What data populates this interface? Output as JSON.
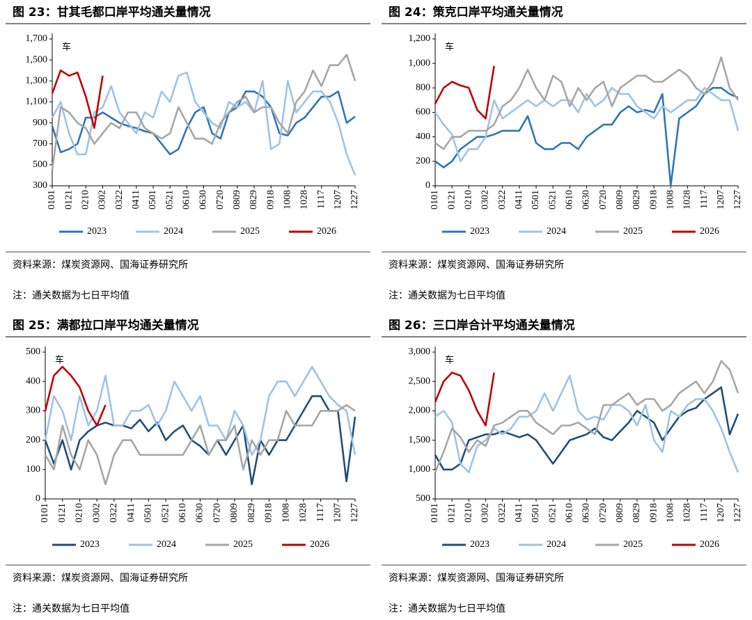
{
  "chart_data": [
    {
      "type": "line",
      "title": "图 23：甘其毛都口岸平均通关量情况",
      "annotation": "车",
      "source": "资料来源：煤炭资源网、国海证券研究所",
      "note": "注：通关数据为七日平均值",
      "categories": [
        "0101",
        null,
        "0121",
        null,
        "0210",
        null,
        "0302",
        null,
        "0322",
        null,
        "0411",
        null,
        "0501",
        null,
        "0521",
        null,
        "0610",
        null,
        "0630",
        null,
        "0720",
        null,
        "0809",
        null,
        "0829",
        null,
        "0918",
        null,
        "1008",
        null,
        "1028",
        null,
        "1117",
        null,
        "1207",
        null,
        "1227"
      ],
      "ylim": [
        300,
        1700
      ],
      "yticks": [
        300,
        500,
        700,
        900,
        {
          "value": 1100,
          "label": "1,100"
        },
        {
          "value": 1300,
          "label": "1,300"
        },
        {
          "value": 1500,
          "label": "1,500"
        },
        {
          "value": 1700,
          "label": "1,700"
        }
      ],
      "series": [
        {
          "name": "2023",
          "color": "#2e75b6",
          "values": [
            870,
            620,
            650,
            700,
            950,
            950,
            1000,
            950,
            900,
            870,
            850,
            820,
            800,
            700,
            600,
            650,
            850,
            1000,
            1050,
            800,
            750,
            1000,
            1050,
            1200,
            1200,
            1150,
            1050,
            800,
            780,
            900,
            950,
            1050,
            1150,
            1150,
            1200,
            900,
            960
          ]
        },
        {
          "name": "2024",
          "color": "#9dc3e6",
          "values": [
            950,
            1100,
            800,
            600,
            600,
            1000,
            1050,
            1250,
            1000,
            900,
            800,
            1000,
            950,
            1200,
            1100,
            1350,
            1380,
            1100,
            1000,
            900,
            850,
            1100,
            1050,
            1100,
            1000,
            1300,
            650,
            700,
            1300,
            1000,
            1100,
            1200,
            1200,
            1100,
            900,
            600,
            400
          ]
        },
        {
          "name": "2025",
          "color": "#a6a6a6",
          "values": [
            450,
            1050,
            1000,
            900,
            850,
            700,
            800,
            900,
            850,
            1000,
            1000,
            850,
            800,
            750,
            800,
            1050,
            900,
            750,
            750,
            700,
            900,
            1000,
            1100,
            1150,
            1000,
            1050,
            1050,
            900,
            800,
            1100,
            1200,
            1400,
            1250,
            1450,
            1450,
            1550,
            1300
          ]
        },
        {
          "name": "2026",
          "color": "#c00000",
          "values": [
            1180,
            1400,
            1350,
            1380,
            1150,
            850,
            1350,
            null,
            null,
            null,
            null,
            null,
            null,
            null,
            null,
            null,
            null,
            null,
            null,
            null,
            null,
            null,
            null,
            null,
            null,
            null,
            null,
            null,
            null,
            null,
            null,
            null,
            null,
            null,
            null,
            null,
            null
          ]
        }
      ]
    },
    {
      "type": "line",
      "title": "图 24：策克口岸平均通关量情况",
      "annotation": "车",
      "source": "资料来源：煤炭资源网、国海证券研究所",
      "note": "注：通关数据为七日平均值",
      "categories": [
        "0101",
        null,
        "0121",
        null,
        "0210",
        null,
        "0302",
        null,
        "0322",
        null,
        "0411",
        null,
        "0501",
        null,
        "0521",
        null,
        "0610",
        null,
        "0630",
        null,
        "0720",
        null,
        "0809",
        null,
        "0829",
        null,
        "0918",
        null,
        "1008",
        null,
        "1028",
        null,
        "1117",
        null,
        "1207",
        null,
        "1227"
      ],
      "ylim": [
        0,
        1200
      ],
      "yticks": [
        0,
        200,
        400,
        600,
        800,
        {
          "value": 1000,
          "label": "1,000"
        },
        {
          "value": 1200,
          "label": "1,200"
        }
      ],
      "series": [
        {
          "name": "2023",
          "color": "#2e75b6",
          "values": [
            200,
            150,
            200,
            300,
            350,
            400,
            400,
            420,
            450,
            450,
            450,
            570,
            350,
            300,
            300,
            350,
            350,
            300,
            400,
            450,
            500,
            500,
            600,
            650,
            600,
            620,
            600,
            750,
            0,
            550,
            600,
            650,
            750,
            800,
            800,
            750,
            720
          ]
        },
        {
          "name": "2024",
          "color": "#9dc3e6",
          "values": [
            600,
            500,
            420,
            200,
            300,
            300,
            400,
            700,
            550,
            600,
            650,
            700,
            650,
            700,
            650,
            700,
            700,
            600,
            750,
            650,
            700,
            800,
            750,
            750,
            650,
            600,
            550,
            650,
            600,
            650,
            700,
            700,
            800,
            750,
            700,
            700,
            450
          ]
        },
        {
          "name": "2025",
          "color": "#a6a6a6",
          "values": [
            350,
            300,
            400,
            400,
            450,
            450,
            450,
            500,
            650,
            700,
            800,
            950,
            800,
            700,
            900,
            850,
            650,
            800,
            700,
            800,
            850,
            650,
            800,
            850,
            900,
            900,
            850,
            850,
            900,
            950,
            900,
            800,
            750,
            850,
            1050,
            800,
            700
          ]
        },
        {
          "name": "2026",
          "color": "#c00000",
          "values": [
            670,
            800,
            850,
            820,
            800,
            620,
            550,
            980,
            null,
            null,
            null,
            null,
            null,
            null,
            null,
            null,
            null,
            null,
            null,
            null,
            null,
            null,
            null,
            null,
            null,
            null,
            null,
            null,
            null,
            null,
            null,
            null,
            null,
            null,
            null,
            null,
            null
          ]
        }
      ]
    },
    {
      "type": "line",
      "title": "图 25：满都拉口岸平均通关量情况",
      "annotation": "车",
      "source": "资料来源：煤炭资源网、国海证券研究所",
      "note": "注：通关数据为七日平均值",
      "categories": [
        "0101",
        null,
        "0121",
        null,
        "0210",
        null,
        "0302",
        null,
        "0322",
        null,
        "0411",
        null,
        "0501",
        null,
        "0521",
        null,
        "0610",
        null,
        "0630",
        null,
        "0720",
        null,
        "0809",
        null,
        "0829",
        null,
        "0918",
        null,
        "1008",
        null,
        "1028",
        null,
        "1117",
        null,
        "1207",
        null,
        "1227"
      ],
      "ylim": [
        0,
        500
      ],
      "yticks": [
        0,
        100,
        200,
        300,
        400,
        500
      ],
      "series": [
        {
          "name": "2023",
          "color": "#1f4e79",
          "values": [
            200,
            120,
            200,
            100,
            200,
            230,
            250,
            260,
            250,
            250,
            240,
            270,
            230,
            260,
            200,
            230,
            250,
            200,
            180,
            150,
            200,
            150,
            200,
            250,
            50,
            200,
            150,
            200,
            200,
            250,
            300,
            350,
            350,
            300,
            300,
            60,
            280
          ]
        },
        {
          "name": "2024",
          "color": "#9dc3e6",
          "values": [
            200,
            350,
            300,
            200,
            350,
            250,
            300,
            420,
            250,
            250,
            300,
            300,
            320,
            250,
            300,
            400,
            350,
            300,
            350,
            250,
            250,
            200,
            300,
            250,
            150,
            200,
            350,
            400,
            400,
            350,
            400,
            450,
            400,
            350,
            320,
            300,
            150
          ]
        },
        {
          "name": "2025",
          "color": "#a6a6a6",
          "values": [
            150,
            100,
            250,
            150,
            100,
            200,
            150,
            50,
            150,
            200,
            200,
            150,
            150,
            150,
            150,
            150,
            150,
            200,
            250,
            150,
            200,
            200,
            250,
            100,
            200,
            150,
            200,
            200,
            300,
            250,
            250,
            250,
            300,
            300,
            300,
            320,
            300
          ]
        },
        {
          "name": "2026",
          "color": "#c00000",
          "values": [
            300,
            420,
            450,
            420,
            380,
            300,
            250,
            320,
            null,
            null,
            null,
            null,
            null,
            null,
            null,
            null,
            null,
            null,
            null,
            null,
            null,
            null,
            null,
            null,
            null,
            null,
            null,
            null,
            null,
            null,
            null,
            null,
            null,
            null,
            null,
            null,
            null
          ]
        }
      ]
    },
    {
      "type": "line",
      "title": "图 26：三口岸合计平均通关量情况",
      "annotation": "车",
      "source": "资料来源：煤炭资源网、国海证券研究所",
      "note": "注：通关数据为七日平均值",
      "categories": [
        "0101",
        null,
        "0121",
        null,
        "0210",
        null,
        "0302",
        null,
        "0322",
        null,
        "0411",
        null,
        "0501",
        null,
        "0521",
        null,
        "0610",
        null,
        "0630",
        null,
        "0720",
        null,
        "0809",
        null,
        "0829",
        null,
        "0918",
        null,
        "1008",
        null,
        "1028",
        null,
        "1117",
        null,
        "1207",
        null,
        "1227"
      ],
      "ylim": [
        500,
        3000
      ],
      "yticks": [
        500,
        {
          "value": 1000,
          "label": "1,000"
        },
        {
          "value": 1500,
          "label": "1,500"
        },
        {
          "value": 2000,
          "label": "2,000"
        },
        {
          "value": 2500,
          "label": "2,500"
        },
        {
          "value": 3000,
          "label": "3,000"
        }
      ],
      "series": [
        {
          "name": "2023",
          "color": "#1f4e79",
          "values": [
            1250,
            1000,
            1000,
            1100,
            1500,
            1550,
            1600,
            1600,
            1650,
            1600,
            1550,
            1600,
            1500,
            1300,
            1100,
            1300,
            1500,
            1550,
            1600,
            1700,
            1550,
            1500,
            1650,
            1800,
            2000,
            1900,
            1800,
            1500,
            1700,
            1900,
            2000,
            2050,
            2200,
            2300,
            2400,
            1600,
            1950
          ]
        },
        {
          "name": "2024",
          "color": "#9dc3e6",
          "values": [
            1900,
            2000,
            1800,
            1100,
            950,
            1400,
            1500,
            1700,
            1600,
            1700,
            1900,
            1900,
            2000,
            2300,
            2000,
            2300,
            2600,
            2000,
            1850,
            1900,
            1850,
            2100,
            2100,
            2000,
            1750,
            2100,
            1500,
            1300,
            2000,
            1900,
            2100,
            2200,
            2200,
            2000,
            1700,
            1300,
            950
          ]
        },
        {
          "name": "2025",
          "color": "#a6a6a6",
          "values": [
            950,
            1300,
            1700,
            1550,
            1300,
            1500,
            1400,
            1750,
            1800,
            1900,
            2000,
            2000,
            1800,
            1700,
            1600,
            1750,
            1750,
            1800,
            1700,
            1600,
            2100,
            2100,
            2200,
            2300,
            2100,
            2200,
            2200,
            2000,
            2100,
            2300,
            2400,
            2500,
            2300,
            2500,
            2850,
            2700,
            2300
          ]
        },
        {
          "name": "2026",
          "color": "#c00000",
          "values": [
            2150,
            2500,
            2650,
            2600,
            2350,
            2000,
            1750,
            2650,
            null,
            null,
            null,
            null,
            null,
            null,
            null,
            null,
            null,
            null,
            null,
            null,
            null,
            null,
            null,
            null,
            null,
            null,
            null,
            null,
            null,
            null,
            null,
            null,
            null,
            null,
            null,
            null,
            null
          ]
        }
      ]
    }
  ]
}
